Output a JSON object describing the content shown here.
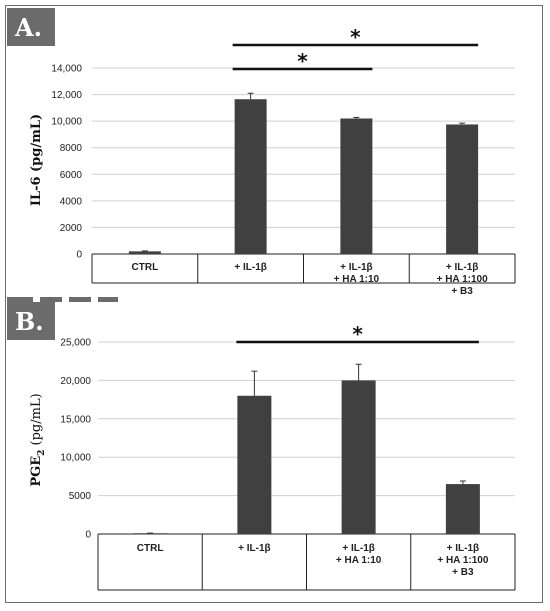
{
  "panels": [
    {
      "panel_label": "A.",
      "ylabel": "IL-6 (pg/mL)",
      "sig_marker": "*"
    },
    {
      "panel_label": "B.",
      "ylabel_main": "PGE",
      "ylabel_sub": "2",
      "ylabel_rest": " (pg/mL)",
      "sig_marker": "*"
    }
  ],
  "chart_data": [
    {
      "type": "bar",
      "categories": [
        [
          "CTRL"
        ],
        [
          "+ IL-1β"
        ],
        [
          "+ IL-1β",
          "+ HA 1:10"
        ],
        [
          "+ IL-1β",
          "+ HA 1:100",
          "+ B3"
        ]
      ],
      "values": [
        200,
        11650,
        10200,
        9750
      ],
      "errors": [
        30,
        450,
        80,
        100
      ],
      "ylim": [
        0,
        14000
      ],
      "yticks": [
        "0",
        "2000",
        "4000",
        "6000",
        "8000",
        "10,000",
        "12,000",
        "14,000"
      ],
      "ytick_values": [
        0,
        2000,
        4000,
        6000,
        8000,
        10000,
        12000,
        14000
      ],
      "grid": true,
      "bar_color": "#404040",
      "significance": [
        {
          "from": 1,
          "to": 3,
          "label": "*"
        },
        {
          "from": 1,
          "to": 2,
          "label": "*"
        }
      ]
    },
    {
      "type": "bar",
      "categories": [
        [
          "CTRL"
        ],
        [
          "+ IL-1β"
        ],
        [
          "+ IL-1β",
          "+ HA 1:10"
        ],
        [
          "+ IL-1β",
          "+ HA 1:100",
          "+ B3"
        ]
      ],
      "values": [
        100,
        18000,
        20000,
        6500
      ],
      "errors": [
        20,
        3200,
        2100,
        400
      ],
      "ylim": [
        0,
        25000
      ],
      "yticks": [
        "0",
        "5000",
        "10,000",
        "15,000",
        "20,000",
        "25,000"
      ],
      "ytick_values": [
        0,
        5000,
        10000,
        15000,
        20000,
        25000
      ],
      "grid": true,
      "bar_color": "#404040",
      "significance": [
        {
          "from": 1,
          "to": 3,
          "label": "*"
        }
      ]
    }
  ]
}
